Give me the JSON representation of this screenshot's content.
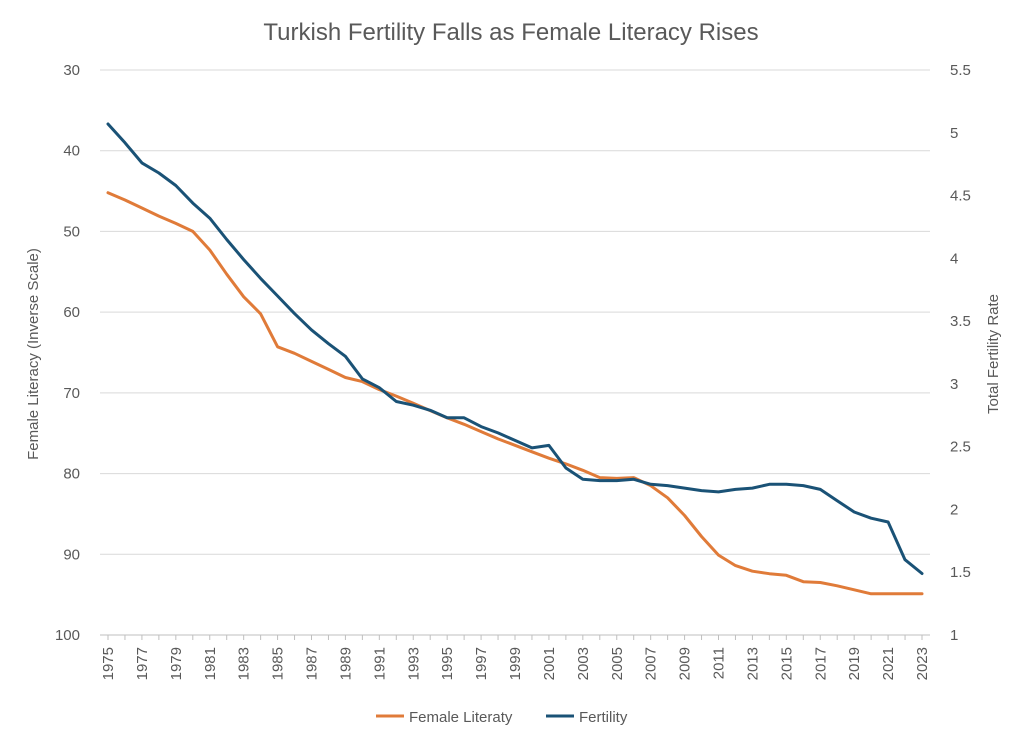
{
  "chart_data": {
    "type": "line",
    "title": "Turkish Fertility Falls as Female Literacy Rises",
    "ylabel_left": "Female Literacy (Inverse Scale)",
    "ylabel_right": "Total Fertility Rate",
    "y_left_inverted": true,
    "ylim_left": [
      30,
      100
    ],
    "ylim_right": [
      1,
      5.5
    ],
    "y_left_ticks": [
      "30",
      "40",
      "50",
      "60",
      "70",
      "80",
      "90",
      "100"
    ],
    "y_right_ticks": [
      "1",
      "1.5",
      "2",
      "2.5",
      "3",
      "3.5",
      "4",
      "4.5",
      "5",
      "5.5"
    ],
    "x_tick_labels": [
      "1975",
      "1977",
      "1979",
      "1981",
      "1983",
      "1985",
      "1987",
      "1989",
      "1991",
      "1993",
      "1995",
      "1997",
      "1999",
      "2001",
      "2003",
      "2005",
      "2007",
      "2009",
      "2011",
      "2013",
      "2015",
      "2017",
      "2019",
      "2021",
      "2023"
    ],
    "grid": true,
    "legend_position": "bottom",
    "x": [
      1975,
      1976,
      1977,
      1978,
      1979,
      1980,
      1981,
      1982,
      1983,
      1984,
      1985,
      1986,
      1987,
      1988,
      1989,
      1990,
      1991,
      1992,
      1993,
      1994,
      1995,
      1996,
      1997,
      1998,
      1999,
      2000,
      2001,
      2002,
      2003,
      2004,
      2005,
      2006,
      2007,
      2008,
      2009,
      2010,
      2011,
      2012,
      2013,
      2014,
      2015,
      2016,
      2017,
      2018,
      2019,
      2020,
      2021,
      2022,
      2023
    ],
    "series": [
      {
        "name": "Female Literaty",
        "axis": "left",
        "color": "#E07B39",
        "values": [
          45.2,
          46.1,
          47.1,
          48.1,
          49.0,
          50.0,
          52.3,
          55.3,
          58.1,
          60.2,
          64.3,
          65.1,
          66.1,
          67.1,
          68.1,
          68.6,
          69.6,
          70.4,
          71.3,
          72.2,
          73.1,
          73.9,
          74.8,
          75.7,
          76.5,
          77.3,
          78.1,
          78.8,
          79.6,
          80.5,
          80.6,
          80.5,
          81.5,
          83.0,
          85.2,
          87.8,
          90.1,
          91.4,
          92.1,
          92.4,
          92.6,
          93.4,
          93.5,
          93.9,
          94.4,
          94.9,
          94.9,
          94.9,
          94.9
        ]
      },
      {
        "name": "Fertility",
        "axis": "right",
        "color": "#1A5276",
        "values": [
          5.07,
          4.92,
          4.76,
          4.68,
          4.58,
          4.44,
          4.32,
          4.15,
          3.99,
          3.84,
          3.7,
          3.56,
          3.43,
          3.32,
          3.22,
          3.04,
          2.97,
          2.86,
          2.83,
          2.79,
          2.73,
          2.73,
          2.66,
          2.61,
          2.55,
          2.49,
          2.51,
          2.33,
          2.24,
          2.23,
          2.23,
          2.24,
          2.2,
          2.19,
          2.17,
          2.15,
          2.14,
          2.16,
          2.17,
          2.2,
          2.2,
          2.19,
          2.16,
          2.07,
          1.98,
          1.93,
          1.9,
          1.6,
          1.49
        ]
      }
    ]
  }
}
